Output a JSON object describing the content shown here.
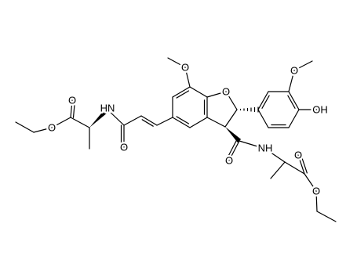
{
  "molecule": {
    "atom_labels": [
      "O",
      "O",
      "HN",
      "O",
      "O",
      "O",
      "O",
      "OH",
      "O",
      "NH",
      "O",
      "O"
    ]
  }
}
